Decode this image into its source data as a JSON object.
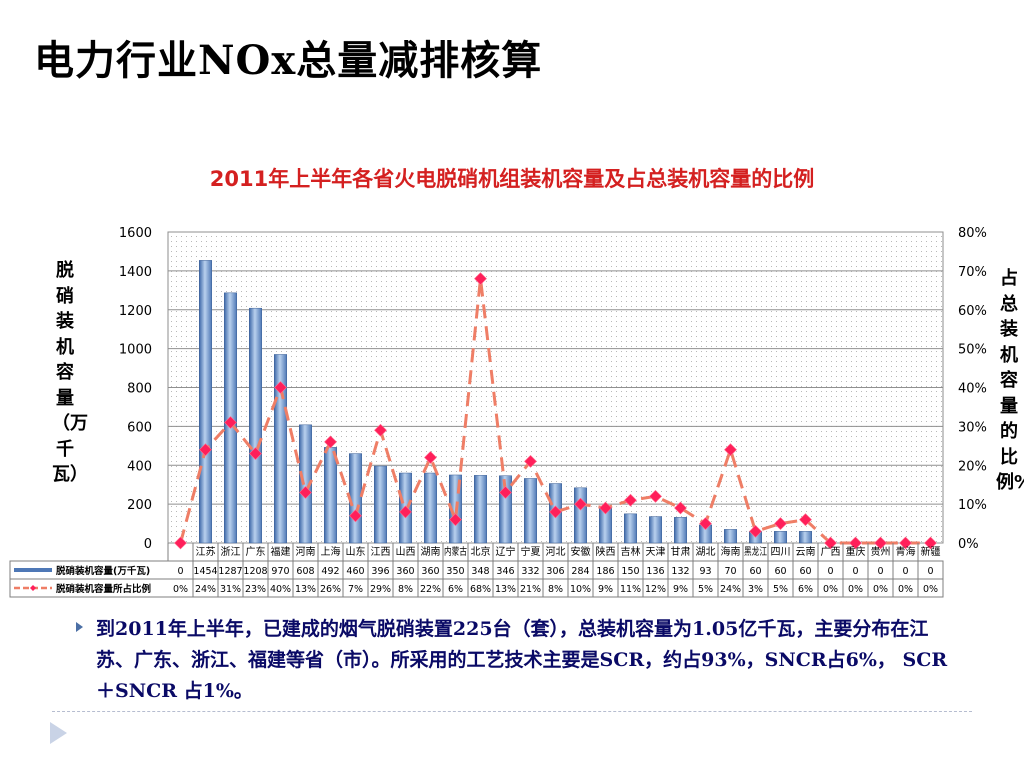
{
  "slide": {
    "title": "电力行业NOx总量减排核算",
    "body": "到2011年上半年，已建成的烟气脱硝装置225台（套），总装机容量为1.05亿千瓦，主要分布在江苏、广东、浙江、福建等省（市）。所采用的工艺技术主要是SCR，约占93%，SNCR占6%， SCR＋SNCR 占1%。"
  },
  "colors": {
    "bar": "#6f96c8",
    "line": "#ef7e66",
    "marker": "#ff1f5a",
    "title": "#d42020",
    "body_text": "#0a0a66"
  },
  "chart_data": {
    "type": "bar",
    "title": "2011年上半年各省火电脱硝机组装机容量及占总装机容量的比例",
    "ylabel": "脱硝装机容量（万千瓦）",
    "y2label": "占总装机容量的比例%",
    "ylim": [
      0,
      1600
    ],
    "y2lim": [
      0,
      80
    ],
    "yticks": [
      0,
      200,
      400,
      600,
      800,
      1000,
      1200,
      1400,
      1600
    ],
    "y2ticks": [
      "0%",
      "10%",
      "20%",
      "30%",
      "40%",
      "50%",
      "60%",
      "70%",
      "80%"
    ],
    "grid": true,
    "categories": [
      "",
      "江苏",
      "浙江",
      "广东",
      "福建",
      "河南",
      "上海",
      "山东",
      "江西",
      "山西",
      "湖南",
      "内蒙古",
      "北京",
      "辽宁",
      "宁夏",
      "河北",
      "安徽",
      "陕西",
      "吉林",
      "天津",
      "甘肃",
      "湖北",
      "海南",
      "黑龙江",
      "四川",
      "云南",
      "广西",
      "重庆",
      "贵州",
      "青海",
      "新疆"
    ],
    "series": [
      {
        "name": "脱硝装机容量(万千瓦)",
        "type": "bar",
        "axis": "left",
        "values": [
          0,
          1454,
          1287,
          1208,
          970,
          608,
          492,
          460,
          396,
          360,
          360,
          350,
          348,
          346,
          332,
          306,
          284,
          186,
          150,
          136,
          132,
          93,
          70,
          60,
          60,
          60,
          0,
          0,
          0,
          0,
          0
        ],
        "labels": [
          "0",
          "1454",
          "1287",
          "1208",
          "970",
          "608",
          "492",
          "460",
          "396",
          "360",
          "360",
          "350",
          "348",
          "346",
          "332",
          "306",
          "284",
          "186",
          "150",
          "136",
          "132",
          "93",
          "70",
          "60",
          "60",
          "60",
          "0",
          "0",
          "0",
          "0",
          "0"
        ]
      },
      {
        "name": "脱硝装机容量所占比例",
        "type": "line",
        "axis": "right",
        "values": [
          0,
          24,
          31,
          23,
          40,
          13,
          26,
          7,
          29,
          8,
          22,
          6,
          68,
          13,
          21,
          8,
          10,
          9,
          11,
          12,
          9,
          5,
          24,
          3,
          5,
          6,
          0,
          0,
          0,
          0,
          0
        ],
        "labels": [
          "0%",
          "24%",
          "31%",
          "23%",
          "40%",
          "13%",
          "26%",
          "7%",
          "29%",
          "8%",
          "22%",
          "6%",
          "68%",
          "13%",
          "21%",
          "8%",
          "10%",
          "9%",
          "11%",
          "12%",
          "9%",
          "5%",
          "24%",
          "3%",
          "5%",
          "6%",
          "0%",
          "0%",
          "0%",
          "0%",
          "0%"
        ]
      }
    ]
  }
}
